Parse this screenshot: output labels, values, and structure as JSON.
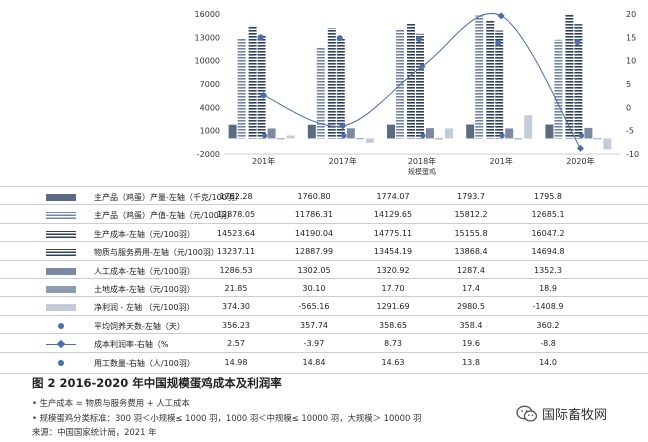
{
  "chart_data": {
    "type": "bar",
    "categories": [
      "201年",
      "2017年",
      "2018年",
      "201年",
      "2020年"
    ],
    "x_axis_title": "规模蛋鸡",
    "left_axis": {
      "min": -2000,
      "max": 16000,
      "ticks": [
        "16000",
        "13000",
        "10000",
        "7000",
        "4000",
        "1000",
        "-2000"
      ]
    },
    "right_axis": {
      "min": -10,
      "max": 20,
      "ticks": [
        "20",
        "15",
        "10",
        "5",
        "0",
        "-5",
        "-10"
      ]
    },
    "series": [
      {
        "name": "主产品（鸡蛋）产量-左轴（千克/100羽）",
        "axis": "left",
        "kind": "bar",
        "color": "#5b6b82",
        "values": [
          1762.28,
          1760.8,
          1774.07,
          1793.7,
          1795.8
        ],
        "labels": [
          "1762.28",
          "1760.80",
          "1774.07",
          "1793.7",
          "1795.8"
        ]
      },
      {
        "name": "主产品（鸡蛋）产值-左轴（元/100羽）",
        "axis": "left",
        "kind": "bar",
        "color": "#a3b6d6",
        "values": [
          12878.05,
          11786.31,
          14129.65,
          15812.2,
          12685.1
        ],
        "labels": [
          "12878.05",
          "11786.31",
          "14129.65",
          "15812.2",
          "12685.1"
        ]
      },
      {
        "name": "生产成本-左轴（元/100羽）",
        "axis": "left",
        "kind": "bar",
        "color": "#2f3f5e",
        "values": [
          14523.64,
          14190.04,
          14775.11,
          15155.8,
          16047.2
        ],
        "labels": [
          "14523.64",
          "14190.04",
          "14775.11",
          "15155.8",
          "16047.2"
        ]
      },
      {
        "name": "物质与服务费用-左轴（元/100羽）",
        "axis": "left",
        "kind": "bar",
        "color": "#4e5f80",
        "values": [
          13237.11,
          12887.99,
          13454.19,
          13868.4,
          14694.8
        ],
        "labels": [
          "13237.11",
          "12887.99",
          "13454.19",
          "13868.4",
          "14694.8"
        ]
      },
      {
        "name": "人工成本-左轴（元/100羽）",
        "axis": "left",
        "kind": "bar",
        "color": "#7b8aa1",
        "values": [
          1286.53,
          1302.05,
          1320.92,
          1287.4,
          1352.3
        ],
        "labels": [
          "1286.53",
          "1302.05",
          "1320.92",
          "1287.4",
          "1352.3"
        ]
      },
      {
        "name": "土地成本-左轴（元/100羽）",
        "axis": "left",
        "kind": "bar",
        "color": "#8d9bb3",
        "values": [
          21.85,
          30.1,
          17.7,
          17.4,
          18.9
        ],
        "labels": [
          "21.85",
          "30.10",
          "17.70",
          "17.4",
          "18.9"
        ]
      },
      {
        "name": "净利润 - 左轴 （元/100羽）",
        "axis": "left",
        "kind": "bar",
        "color": "#c3cbd8",
        "values": [
          374.3,
          -565.16,
          1291.69,
          2980.5,
          -1408.9
        ],
        "labels": [
          "374.30",
          "-565.16",
          "1291.69",
          "2980.5",
          "-1408.9"
        ]
      },
      {
        "name": "平均饲养天数-左轴（天）",
        "axis": "left",
        "kind": "marker",
        "color": "#4a6ea8",
        "values": [
          356.23,
          357.74,
          358.65,
          358.4,
          360.2
        ],
        "labels": [
          "356.23",
          "357.74",
          "358.65",
          "358.4",
          "360.2"
        ]
      },
      {
        "name": "成本利润率-右轴（%",
        "axis": "right",
        "kind": "line",
        "color": "#4a6ea8",
        "values": [
          2.57,
          -3.97,
          8.73,
          19.6,
          -8.8
        ],
        "labels": [
          "2.57",
          "-3.97",
          "8.73",
          "19.6",
          "-8.8"
        ]
      },
      {
        "name": "用工数量-右轴（人/100羽）",
        "axis": "right",
        "kind": "marker",
        "color": "#4a6ea8",
        "values": [
          14.98,
          14.84,
          14.63,
          13.8,
          14.0
        ],
        "labels": [
          "14.98",
          "14.84",
          "14.63",
          "13.8",
          "14.0"
        ]
      }
    ]
  },
  "caption": "图 2 2016-2020 年中国规模蛋鸡成本及利润率",
  "notes": [
    "• 生产成本 = 物质与服务费用 + 人工成本",
    "• 规模蛋鸡分类标准：300 羽＜小规模≤ 1000 羽，1000 羽＜中规模≤ 10000 羽，大规模＞ 10000 羽",
    "来源：中国国家统计局，2021 年"
  ],
  "brand": "国际畜牧网"
}
